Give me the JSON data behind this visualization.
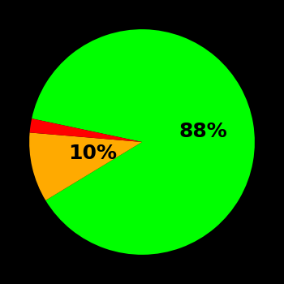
{
  "slices": [
    88,
    10,
    2
  ],
  "colors": [
    "#00ff00",
    "#ffaa00",
    "#ff0000"
  ],
  "labels": [
    "88%",
    "10%",
    ""
  ],
  "background_color": "#000000",
  "label_fontsize": 18,
  "label_color": "#000000",
  "startangle": 168,
  "label_distance_green": 0.55,
  "label_distance_yellow": 0.45
}
